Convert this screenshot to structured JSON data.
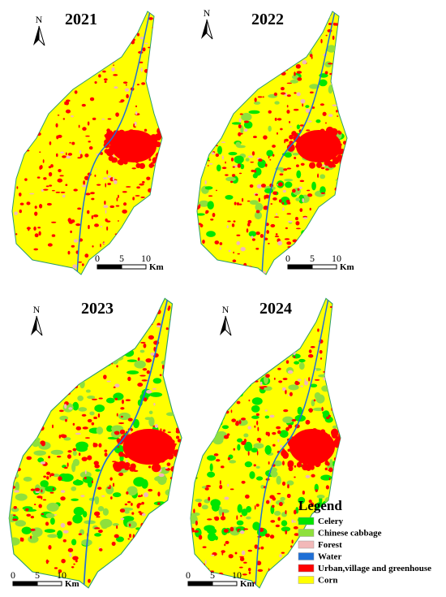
{
  "maps": [
    {
      "year": "2021",
      "north": "N",
      "scale": [
        0,
        5,
        10
      ],
      "unit": "Km"
    },
    {
      "year": "2022",
      "north": "N",
      "scale": [
        0,
        5,
        10
      ],
      "unit": "Km"
    },
    {
      "year": "2023",
      "north": "N",
      "scale": [
        0,
        5,
        10
      ],
      "unit": "Km"
    },
    {
      "year": "2024",
      "north": "N",
      "scale": [
        0,
        5,
        10
      ],
      "unit": "Km"
    }
  ],
  "legend": {
    "title": "Legend",
    "items": [
      {
        "label": "Celery",
        "color": "#00e600"
      },
      {
        "label": "Chinese cabbage",
        "color": "#8fe03c"
      },
      {
        "label": "Forest",
        "color": "#f2b8b8"
      },
      {
        "label": "Water",
        "color": "#1f6fd6"
      },
      {
        "label": "Urban,village and greenhouse",
        "color": "#ff0000"
      },
      {
        "label": "Corn",
        "color": "#ffff00"
      }
    ]
  }
}
